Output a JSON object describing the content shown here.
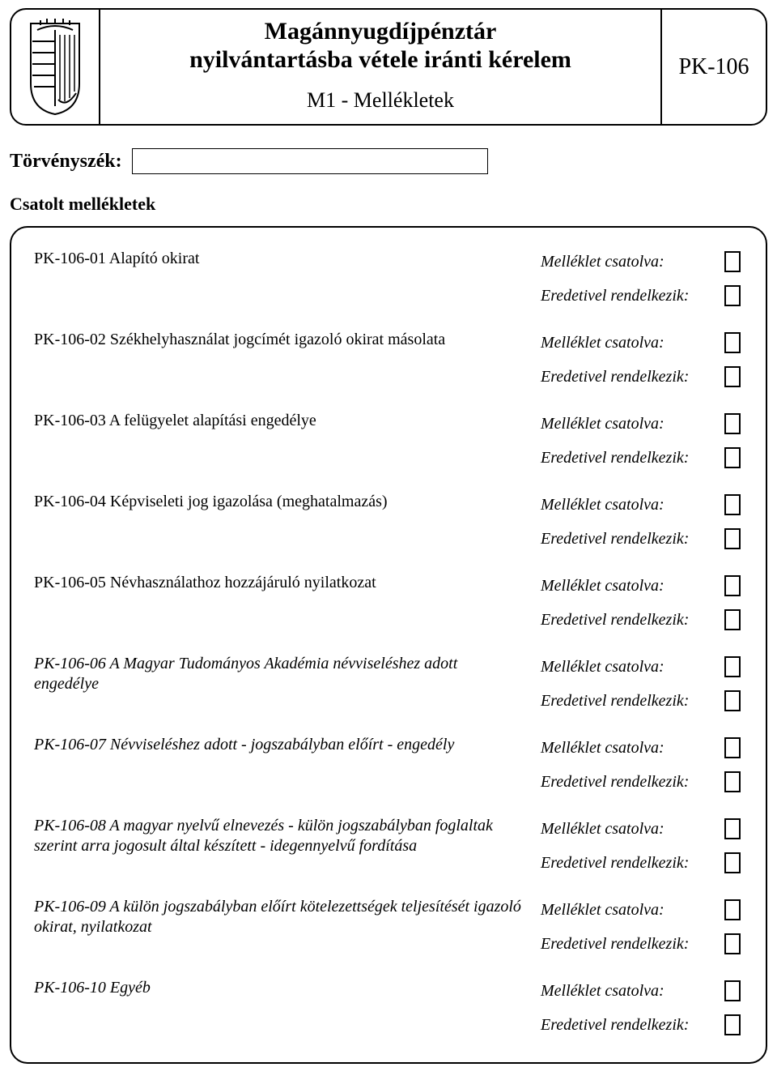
{
  "header": {
    "title_line1": "Magánnyugdíjpénztár",
    "title_line2": "nyilvántartásba vétele iránti  kérelem",
    "subtitle": "M1 -  Mellékletek",
    "form_code": "PK-106"
  },
  "court": {
    "label": "Törvényszék:",
    "value": ""
  },
  "section_title": "Csatolt mellékletek",
  "labels": {
    "attached": "Melléklet csatolva:",
    "original": "Eredetivel rendelkezik:"
  },
  "attachments": [
    {
      "text": "PK-106-01 Alapító okirat",
      "italic": false
    },
    {
      "text": "PK-106-02 Székhelyhasználat jogcímét igazoló okirat másolata",
      "italic": false
    },
    {
      "text": "PK-106-03 A felügyelet alapítási engedélye",
      "italic": false
    },
    {
      "text": "PK-106-04 Képviseleti jog igazolása (meghatalmazás)",
      "italic": false
    },
    {
      "text": "PK-106-05 Névhasználathoz hozzájáruló nyilatkozat",
      "italic": false
    },
    {
      "text": "PK-106-06 A Magyar Tudományos Akadémia névviseléshez adott engedélye",
      "italic": true
    },
    {
      "text": "PK-106-07 Névviseléshez adott - jogszabályban előírt - engedély",
      "italic": true
    },
    {
      "text": "PK-106-08 A magyar nyelvű elnevezés - külön jogszabályban foglaltak szerint arra jogosult által készített - idegennyelvű fordítása",
      "italic": true
    },
    {
      "text": "PK-106-09 A külön jogszabályban előírt kötelezettségek teljesítését igazoló okirat, nyilatkozat",
      "italic": true
    },
    {
      "text": "PK-106-10 Egyéb",
      "italic": true
    }
  ],
  "colors": {
    "border": "#000000",
    "background": "#ffffff",
    "text": "#000000"
  }
}
